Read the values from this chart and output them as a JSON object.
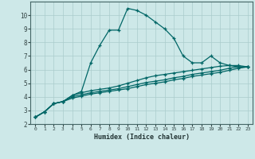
{
  "xlabel": "Humidex (Indice chaleur)",
  "bg_color": "#cde8e8",
  "grid_color": "#aacccc",
  "line_color": "#006666",
  "xlim": [
    -0.5,
    23.5
  ],
  "ylim": [
    2,
    11
  ],
  "yticks": [
    2,
    3,
    4,
    5,
    6,
    7,
    8,
    9,
    10
  ],
  "xticks": [
    0,
    1,
    2,
    3,
    4,
    5,
    6,
    7,
    8,
    9,
    10,
    11,
    12,
    13,
    14,
    15,
    16,
    17,
    18,
    19,
    20,
    21,
    22,
    23
  ],
  "line1_x": [
    0,
    1,
    2,
    3,
    4,
    5,
    6,
    7,
    8,
    9,
    10,
    11,
    12,
    13,
    14,
    15,
    16,
    17,
    18,
    19,
    20,
    21,
    22,
    23
  ],
  "line1_y": [
    2.5,
    2.9,
    3.5,
    3.65,
    4.1,
    4.4,
    6.5,
    7.8,
    8.9,
    8.9,
    10.5,
    10.35,
    10.0,
    9.5,
    9.0,
    8.3,
    7.0,
    6.5,
    6.5,
    7.0,
    6.5,
    6.3,
    6.2,
    6.2
  ],
  "line2_x": [
    0,
    1,
    2,
    3,
    4,
    5,
    6,
    7,
    8,
    9,
    10,
    11,
    12,
    13,
    14,
    15,
    16,
    17,
    18,
    19,
    20,
    21,
    22,
    23
  ],
  "line2_y": [
    2.5,
    2.9,
    3.5,
    3.65,
    4.1,
    4.3,
    4.45,
    4.55,
    4.65,
    4.8,
    5.0,
    5.2,
    5.4,
    5.55,
    5.65,
    5.75,
    5.85,
    5.95,
    6.05,
    6.15,
    6.25,
    6.3,
    6.3,
    6.2
  ],
  "line3_x": [
    0,
    1,
    2,
    3,
    4,
    5,
    6,
    7,
    8,
    9,
    10,
    11,
    12,
    13,
    14,
    15,
    16,
    17,
    18,
    19,
    20,
    21,
    22,
    23
  ],
  "line3_y": [
    2.5,
    2.9,
    3.5,
    3.65,
    4.0,
    4.15,
    4.3,
    4.4,
    4.5,
    4.6,
    4.75,
    4.9,
    5.05,
    5.15,
    5.25,
    5.4,
    5.5,
    5.65,
    5.75,
    5.85,
    5.95,
    6.1,
    6.2,
    6.2
  ],
  "line4_x": [
    0,
    1,
    2,
    3,
    4,
    5,
    6,
    7,
    8,
    9,
    10,
    11,
    12,
    13,
    14,
    15,
    16,
    17,
    18,
    19,
    20,
    21,
    22,
    23
  ],
  "line4_y": [
    2.5,
    2.9,
    3.5,
    3.65,
    3.9,
    4.05,
    4.2,
    4.3,
    4.4,
    4.5,
    4.6,
    4.75,
    4.9,
    5.0,
    5.1,
    5.25,
    5.35,
    5.5,
    5.6,
    5.7,
    5.8,
    5.95,
    6.1,
    6.2
  ]
}
